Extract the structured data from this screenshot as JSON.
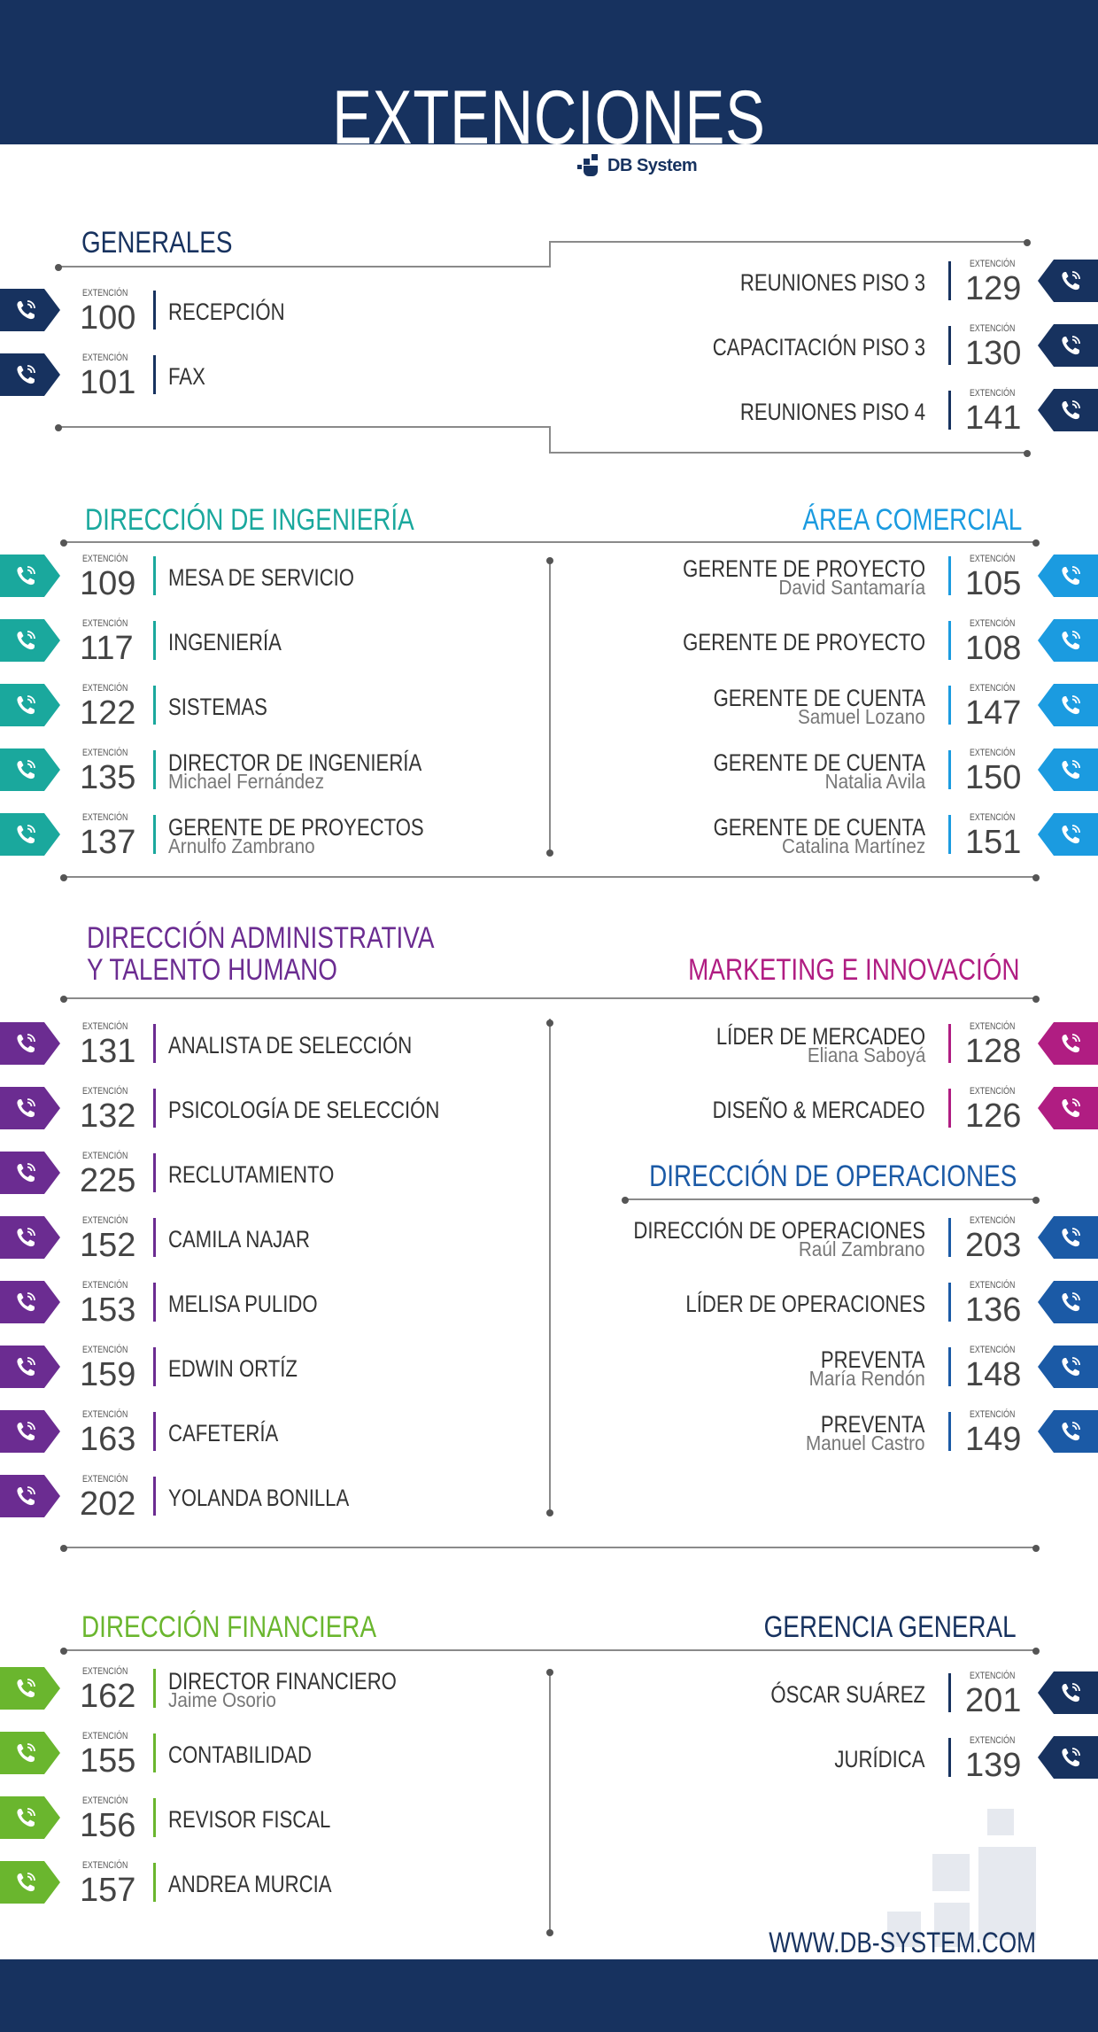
{
  "title": "EXTENCIONES",
  "brand": "DB System",
  "ext_label": "EXTENCIÓN",
  "url": "WWW.DB-SYSTEM.COM",
  "colors": {
    "navy": "#17325f",
    "teal": "#1aa89d",
    "cyan": "#1b9be0",
    "purple": "#6b2c91",
    "magenta": "#b01d82",
    "blue": "#1b5aa6",
    "green": "#6ab62e"
  },
  "icon": "phone-icon",
  "sections": {
    "generales": {
      "title": "GENERALES",
      "left": [
        {
          "ext": "100",
          "label": "RECEPCIÓN"
        },
        {
          "ext": "101",
          "label": "FAX"
        }
      ],
      "right": [
        {
          "ext": "129",
          "label": "REUNIONES PISO 3"
        },
        {
          "ext": "130",
          "label": "CAPACITACIÓN PISO 3"
        },
        {
          "ext": "141",
          "label": "REUNIONES PISO 4"
        }
      ]
    },
    "ingenieria": {
      "title": "DIRECCIÓN DE INGENIERÍA",
      "items": [
        {
          "ext": "109",
          "label": "MESA DE SERVICIO",
          "name": ""
        },
        {
          "ext": "117",
          "label": "INGENIERÍA",
          "name": ""
        },
        {
          "ext": "122",
          "label": "SISTEMAS",
          "name": ""
        },
        {
          "ext": "135",
          "label": "DIRECTOR DE INGENIERÍA",
          "name": "Michael Fernández"
        },
        {
          "ext": "137",
          "label": "GERENTE DE PROYECTOS",
          "name": "Arnulfo Zambrano"
        }
      ]
    },
    "comercial": {
      "title": "ÁREA COMERCIAL",
      "items": [
        {
          "ext": "105",
          "label": "GERENTE DE PROYECTO",
          "name": "David Santamaría"
        },
        {
          "ext": "108",
          "label": "GERENTE DE PROYECTO",
          "name": ""
        },
        {
          "ext": "147",
          "label": "GERENTE DE CUENTA",
          "name": "Samuel Lozano"
        },
        {
          "ext": "150",
          "label": "GERENTE DE CUENTA",
          "name": "Natalia Avila"
        },
        {
          "ext": "151",
          "label": "GERENTE DE CUENTA",
          "name": "Catalina Martínez"
        }
      ]
    },
    "administrativa": {
      "title_line1": "DIRECCIÓN ADMINISTRATIVA",
      "title_line2": "Y TALENTO HUMANO",
      "items": [
        {
          "ext": "131",
          "label": "ANALISTA DE SELECCIÓN"
        },
        {
          "ext": "132",
          "label": "PSICOLOGÍA DE SELECCIÓN"
        },
        {
          "ext": "225",
          "label": "RECLUTAMIENTO"
        },
        {
          "ext": "152",
          "label": "CAMILA NAJAR"
        },
        {
          "ext": "153",
          "label": "MELISA PULIDO"
        },
        {
          "ext": "159",
          "label": "EDWIN ORTÍZ"
        },
        {
          "ext": "163",
          "label": "CAFETERÍA"
        },
        {
          "ext": "202",
          "label": "YOLANDA BONILLA"
        }
      ]
    },
    "marketing": {
      "title": "MARKETING E INNOVACIÓN",
      "items": [
        {
          "ext": "128",
          "label": "LÍDER DE MERCADEO",
          "name": "Eliana Saboyá"
        },
        {
          "ext": "126",
          "label": "DISEÑO & MERCADEO",
          "name": ""
        }
      ]
    },
    "operaciones": {
      "title": "DIRECCIÓN DE OPERACIONES",
      "items": [
        {
          "ext": "203",
          "label": "DIRECCIÓN DE OPERACIONES",
          "name": "Raúl Zambrano"
        },
        {
          "ext": "136",
          "label": "LÍDER DE OPERACIONES",
          "name": ""
        },
        {
          "ext": "148",
          "label": "PREVENTA",
          "name": "María Rendón"
        },
        {
          "ext": "149",
          "label": "PREVENTA",
          "name": "Manuel Castro"
        }
      ]
    },
    "financiera": {
      "title": "DIRECCIÓN FINANCIERA",
      "items": [
        {
          "ext": "162",
          "label": "DIRECTOR FINANCIERO",
          "name": "Jaime Osorio"
        },
        {
          "ext": "155",
          "label": "CONTABILIDAD",
          "name": ""
        },
        {
          "ext": "156",
          "label": "REVISOR FISCAL",
          "name": ""
        },
        {
          "ext": "157",
          "label": "ANDREA MURCIA",
          "name": ""
        }
      ]
    },
    "gerencia": {
      "title": "GERENCIA GENERAL",
      "items": [
        {
          "ext": "201",
          "label": "ÓSCAR SUÁREZ"
        },
        {
          "ext": "139",
          "label": "JURÍDICA"
        }
      ]
    }
  }
}
